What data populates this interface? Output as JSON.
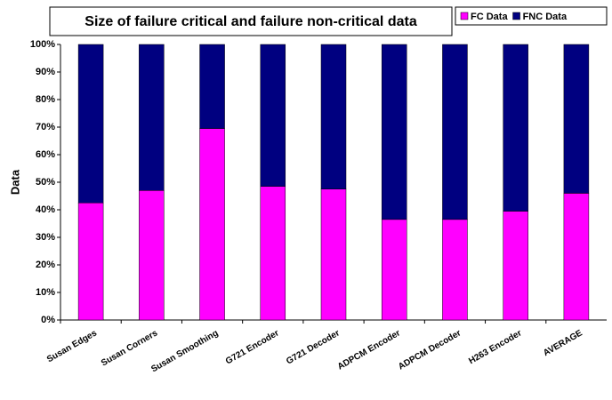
{
  "chart_data": {
    "type": "stacked_bar",
    "title": "Size of failure critical and failure non-critical data",
    "y_label": "Data",
    "categories": [
      "Susan Edges",
      "Susan Corners",
      "Susan Smoothing",
      "G721 Encoder",
      "G721 Decoder",
      "ADPCM Encoder",
      "ADPCM Decoder",
      "H263 Encoder",
      "AVERAGE"
    ],
    "series": [
      {
        "name": "FC Data",
        "color": "#ff00ff",
        "values": [
          42.5,
          47,
          69.5,
          48.5,
          47.5,
          36.5,
          36.5,
          39.5,
          46
        ]
      },
      {
        "name": "FNC Data",
        "color": "#000080",
        "values": [
          57.5,
          53,
          30.5,
          51.5,
          52.5,
          63.5,
          63.5,
          60.5,
          54
        ]
      }
    ],
    "ylim": [
      0,
      100
    ],
    "yticks": [
      {
        "value": 0,
        "label": "0%"
      },
      {
        "value": 10,
        "label": "10%"
      },
      {
        "value": 20,
        "label": "20%"
      },
      {
        "value": 30,
        "label": "30%"
      },
      {
        "value": 40,
        "label": "40%"
      },
      {
        "value": 50,
        "label": "50%"
      },
      {
        "value": 60,
        "label": "60%"
      },
      {
        "value": 70,
        "label": "70%"
      },
      {
        "value": 80,
        "label": "80%"
      },
      {
        "value": 90,
        "label": "90%"
      },
      {
        "value": 100,
        "label": "100%"
      }
    ],
    "grid": false,
    "legend": "top-right"
  }
}
